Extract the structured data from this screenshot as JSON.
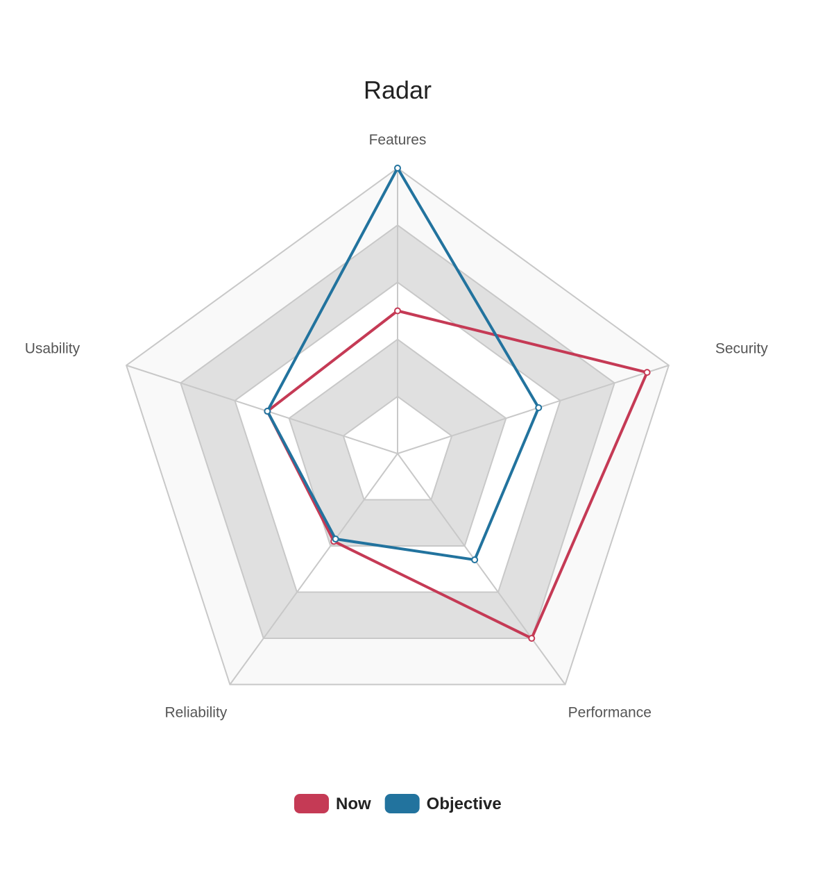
{
  "chart_data": {
    "type": "radar",
    "title": "Radar",
    "axes": [
      "Features",
      "Security",
      "Performance",
      "Reliability",
      "Usability"
    ],
    "range": [
      0,
      5
    ],
    "rings": 5,
    "band_colors": [
      "#ffffff",
      "#e0e0e0",
      "#ffffff",
      "#e0e0e0",
      "#f9f9f9"
    ],
    "grid_color": "#c8c8c8",
    "legend_position": "bottom",
    "series": [
      {
        "name": "Now",
        "color": "#c53a55",
        "values": [
          2.5,
          4.6,
          4.0,
          1.9,
          2.4
        ]
      },
      {
        "name": "Objective",
        "color": "#22739e",
        "values": [
          5.0,
          2.6,
          2.3,
          1.85,
          2.4
        ]
      }
    ]
  }
}
